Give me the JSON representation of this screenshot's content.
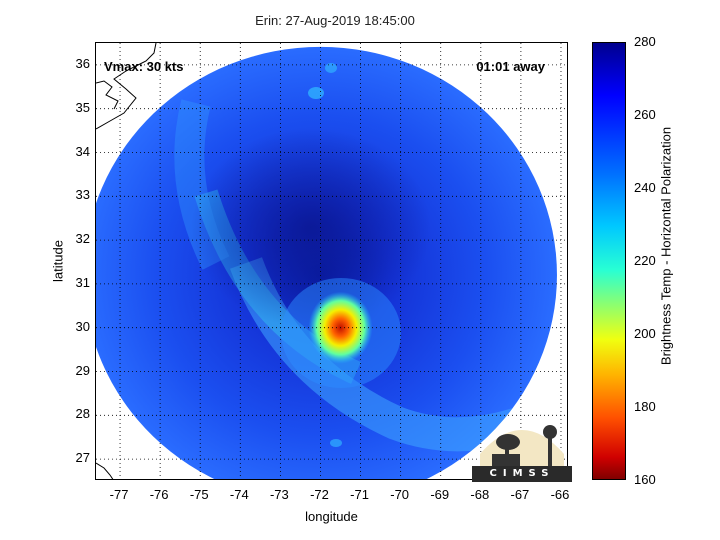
{
  "header": {
    "title": "Erin: 27-Aug-2019 18:45:00"
  },
  "overlays": {
    "vmax": "Vmax: 30 kts",
    "away": "01:01 away"
  },
  "axes": {
    "xlabel": "longitude",
    "ylabel": "latitude",
    "xticks": [
      "-77",
      "-76",
      "-75",
      "-74",
      "-73",
      "-72",
      "-71",
      "-70",
      "-69",
      "-68",
      "-67",
      "-66"
    ],
    "yticks": [
      "36",
      "35",
      "34",
      "33",
      "32",
      "31",
      "30",
      "29",
      "28",
      "27"
    ],
    "xrange": [
      -77.6,
      -65.8
    ],
    "yrange": [
      26.5,
      36.5
    ]
  },
  "colorbar": {
    "label": "Brightness Temp - Horizontal Polarization",
    "ticks": [
      "280",
      "260",
      "240",
      "220",
      "200",
      "180",
      "160"
    ],
    "range": [
      160,
      280
    ],
    "colors": {
      "cold": "#800000",
      "mid": "#ffff00",
      "warm": "#00008f"
    }
  },
  "logo": {
    "text": "CIMSS"
  },
  "image_features": {
    "storm_center": {
      "lon": -71.5,
      "lat": 30.0,
      "min_temp_K": 170
    },
    "swath_center": {
      "lon": -72.0,
      "lat": 31.2
    },
    "swath_radius_deg_lon": 5.9
  }
}
